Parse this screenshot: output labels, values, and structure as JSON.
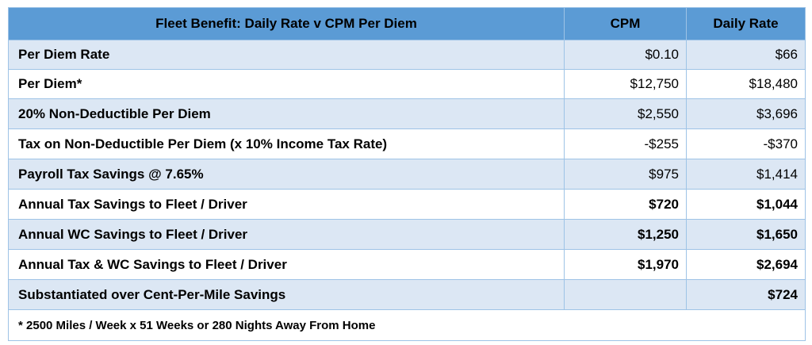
{
  "table": {
    "headers": [
      "Fleet Benefit: Daily Rate v CPM Per Diem",
      "CPM",
      "Daily Rate"
    ],
    "rows": [
      {
        "label": "Per Diem Rate",
        "cpm": "$0.10",
        "daily": "$66",
        "bold": false
      },
      {
        "label": "Per Diem*",
        "cpm": "$12,750",
        "daily": "$18,480",
        "bold": false
      },
      {
        "label": "20% Non-Deductible Per Diem",
        "cpm": "$2,550",
        "daily": "$3,696",
        "bold": false
      },
      {
        "label": "Tax on Non-Deductible Per Diem (x 10% Income Tax Rate)",
        "cpm": "-$255",
        "daily": "-$370",
        "bold": false
      },
      {
        "label": "Payroll Tax Savings @ 7.65%",
        "cpm": "$975",
        "daily": "$1,414",
        "bold": false
      },
      {
        "label": "Annual Tax Savings to Fleet / Driver",
        "cpm": "$720",
        "daily": "$1,044",
        "bold": true
      },
      {
        "label": "Annual WC Savings to Fleet / Driver",
        "cpm": "$1,250",
        "daily": "$1,650",
        "bold": true
      },
      {
        "label": "Annual Tax & WC Savings to Fleet / Driver",
        "cpm": "$1,970",
        "daily": "$2,694",
        "bold": true
      },
      {
        "label": "Substantiated over Cent-Per-Mile Savings",
        "cpm": "",
        "daily": "$724",
        "bold": true
      }
    ],
    "footnote": "* 2500 Miles / Week x 51 Weeks or 280 Nights Away From Home"
  },
  "colors": {
    "header": "#5b9bd5",
    "band": "#dce7f4",
    "border": "#9ec3e6"
  }
}
